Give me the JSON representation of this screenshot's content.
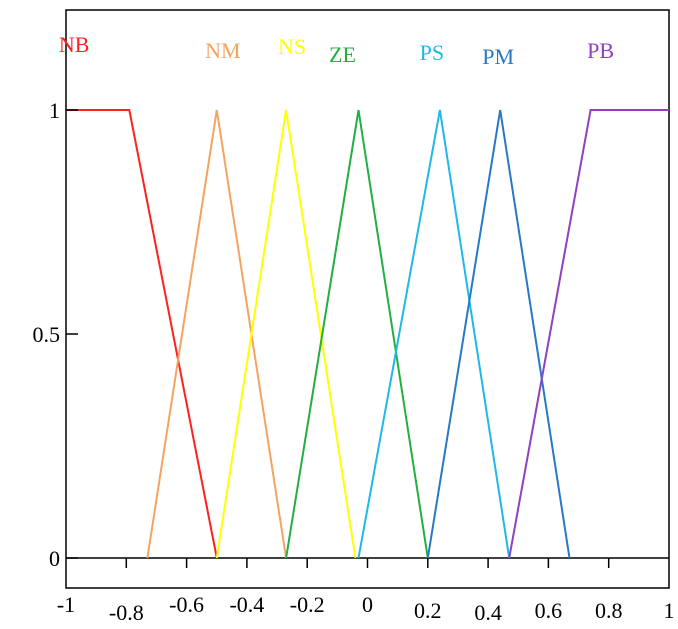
{
  "chart_data": {
    "type": "line",
    "title": "",
    "xlabel": "",
    "ylabel": "",
    "xlim": [
      -1,
      1
    ],
    "ylim": [
      0,
      1
    ],
    "x_ticks": [
      {
        "value": -1,
        "label": "-1"
      },
      {
        "value": -0.8,
        "label": "-0.8"
      },
      {
        "value": -0.6,
        "label": "-0.6"
      },
      {
        "value": -0.4,
        "label": "-0.4"
      },
      {
        "value": -0.2,
        "label": "-0.2"
      },
      {
        "value": 0,
        "label": "0"
      },
      {
        "value": 0.2,
        "label": "0.2"
      },
      {
        "value": 0.4,
        "label": "0.4"
      },
      {
        "value": 0.6,
        "label": "0.6"
      },
      {
        "value": 0.8,
        "label": "0.8"
      },
      {
        "value": 1,
        "label": "1"
      }
    ],
    "y_ticks": [
      {
        "value": 0,
        "label": "0"
      },
      {
        "value": 0.5,
        "label": "0.5"
      },
      {
        "value": 1,
        "label": "1"
      }
    ],
    "grid": false,
    "series": [
      {
        "name": "NB",
        "color": "#ff2020",
        "x": [
          -1,
          -0.79,
          -0.5
        ],
        "y": [
          1,
          1,
          0
        ]
      },
      {
        "name": "NM",
        "color": "#f4a460",
        "x": [
          -0.73,
          -0.5,
          -0.27
        ],
        "y": [
          0,
          1,
          0
        ]
      },
      {
        "name": "NS",
        "color": "#ffff00",
        "x": [
          -0.5,
          -0.27,
          -0.04
        ],
        "y": [
          0,
          1,
          0
        ]
      },
      {
        "name": "ZE",
        "color": "#20b040",
        "x": [
          -0.27,
          -0.03,
          0.2
        ],
        "y": [
          0,
          1,
          0
        ]
      },
      {
        "name": "PS",
        "color": "#20b8e8",
        "x": [
          -0.03,
          0.24,
          0.47
        ],
        "y": [
          0,
          1,
          0
        ]
      },
      {
        "name": "PM",
        "color": "#2878c8",
        "x": [
          0.2,
          0.44,
          0.67
        ],
        "y": [
          0,
          1,
          0
        ]
      },
      {
        "name": "PB",
        "color": "#9040c0",
        "x": [
          0.47,
          0.74,
          1
        ],
        "y": [
          0,
          1,
          1
        ]
      }
    ]
  }
}
